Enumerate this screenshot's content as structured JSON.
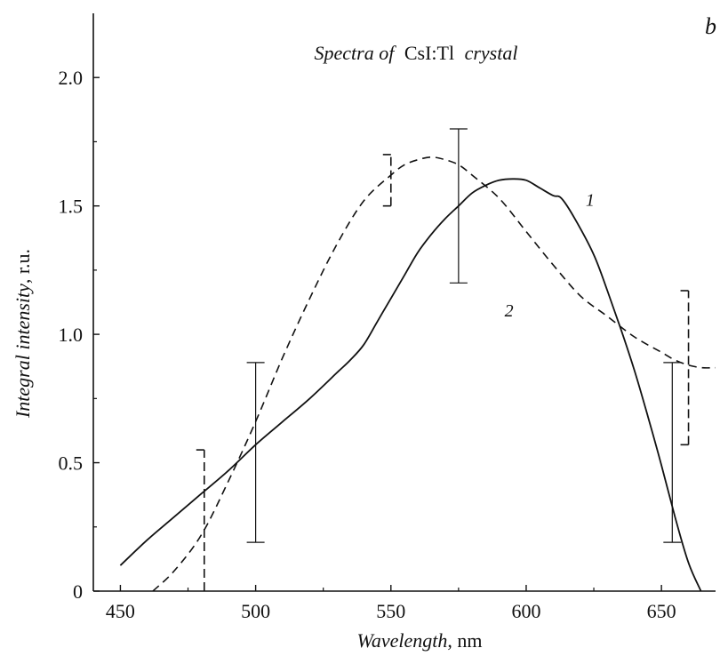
{
  "chart_data": {
    "type": "line",
    "panel_label": "b",
    "title": {
      "prefix": "Spectra of",
      "material": "CsI:Tl",
      "suffix": "crystal"
    },
    "xlabel": {
      "name": "Wavelength",
      "unit": ", nm"
    },
    "ylabel": {
      "name": "Integral intensity",
      "unit": ", r.u."
    },
    "xlim": [
      440,
      670
    ],
    "ylim": [
      0,
      2.25
    ],
    "x_ticks": [
      450,
      500,
      550,
      600,
      650
    ],
    "y_ticks": [
      0,
      0.5,
      1.0,
      1.5,
      2.0
    ],
    "x_tick_labels": [
      "450",
      "500",
      "550",
      "600",
      "650"
    ],
    "y_tick_labels": [
      "0",
      "0.5",
      "1.0",
      "1.5",
      "2.0"
    ],
    "grid": false,
    "series": [
      {
        "name": "1",
        "style": "solid",
        "color": "#111111",
        "x": [
          450,
          460,
          470,
          480,
          490,
          500,
          510,
          520,
          530,
          535,
          540,
          545,
          550,
          555,
          560,
          565,
          570,
          575,
          580,
          585,
          590,
          595,
          600,
          605,
          610,
          613,
          618,
          625,
          630,
          635,
          640,
          645,
          650,
          655,
          660,
          665,
          667
        ],
        "y": [
          0.1,
          0.2,
          0.29,
          0.38,
          0.47,
          0.57,
          0.66,
          0.75,
          0.85,
          0.9,
          0.96,
          1.05,
          1.14,
          1.23,
          1.32,
          1.39,
          1.45,
          1.5,
          1.55,
          1.58,
          1.6,
          1.605,
          1.6,
          1.57,
          1.54,
          1.53,
          1.45,
          1.31,
          1.17,
          1.02,
          0.86,
          0.68,
          0.49,
          0.29,
          0.11,
          -0.01,
          -0.07
        ],
        "error_bars": [
          {
            "x": 500,
            "low": 0.19,
            "high": 0.89
          },
          {
            "x": 575,
            "low": 1.2,
            "high": 1.8
          },
          {
            "x": 654,
            "low": 0.19,
            "high": 0.89
          }
        ]
      },
      {
        "name": "2",
        "style": "dashed",
        "color": "#111111",
        "x": [
          462,
          470,
          480,
          490,
          500,
          510,
          520,
          530,
          540,
          550,
          555,
          560,
          565,
          570,
          575,
          580,
          590,
          600,
          610,
          620,
          630,
          640,
          650,
          655,
          660,
          665,
          670
        ],
        "y": [
          0.0,
          0.08,
          0.22,
          0.43,
          0.66,
          0.91,
          1.14,
          1.35,
          1.52,
          1.62,
          1.66,
          1.68,
          1.69,
          1.68,
          1.66,
          1.62,
          1.53,
          1.4,
          1.27,
          1.15,
          1.07,
          0.99,
          0.93,
          0.9,
          0.88,
          0.87,
          0.87
        ],
        "error_bars": [
          {
            "x": 481,
            "low": 0.0,
            "high": 0.55
          },
          {
            "x": 550,
            "low": 1.5,
            "high": 1.7
          },
          {
            "x": 660,
            "low": 0.57,
            "high": 1.17
          }
        ]
      }
    ],
    "series_label_positions": [
      {
        "series": "1",
        "x": 622,
        "y": 1.5
      },
      {
        "series": "2",
        "x": 592,
        "y": 1.07
      }
    ]
  }
}
